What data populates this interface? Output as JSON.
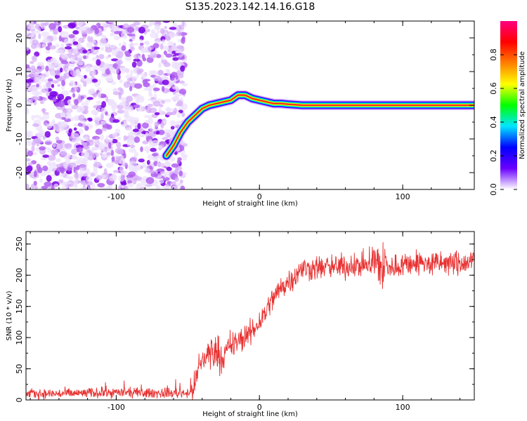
{
  "title": "S135.2023.142.14.16.G18",
  "chart_data": [
    {
      "type": "heatmap",
      "xlabel": "Height of straight line (km)",
      "ylabel": "Frequency (Hz)",
      "xlim": [
        -163,
        150
      ],
      "ylim": [
        -25,
        25
      ],
      "x_ticks": [
        -100,
        0,
        100
      ],
      "y_ticks": [
        -20,
        -10,
        0,
        10,
        20
      ],
      "noise_region_x": [
        -163,
        -52
      ],
      "signal_ridge": {
        "x": [
          -65,
          -60,
          -55,
          -50,
          -45,
          -40,
          -35,
          -30,
          -25,
          -20,
          -15,
          -10,
          -5,
          0,
          5,
          10,
          15,
          20,
          30,
          60,
          100,
          150
        ],
        "y": [
          -15,
          -12,
          -8,
          -5,
          -3,
          -1,
          0,
          0.5,
          1,
          1.5,
          3,
          3,
          2,
          1.5,
          1,
          0.5,
          0.5,
          0.3,
          0,
          0,
          0,
          0
        ]
      },
      "colorbar": {
        "label": "Normalized spectral amplitude",
        "range": [
          0,
          1
        ],
        "ticks": [
          0.0,
          0.2,
          0.4,
          0.6,
          0.8
        ],
        "tick_labels": [
          "0.0",
          "0.2",
          "0.4",
          "0.6",
          "0.8"
        ],
        "colors": [
          "#ffffff",
          "#6a00ff",
          "#0000ff",
          "#00e5ff",
          "#00ff00",
          "#ffff00",
          "#ff8000",
          "#ff0000",
          "#ff0080"
        ]
      }
    },
    {
      "type": "line",
      "xlabel": "Height of straight line (km)",
      "ylabel": "SNR (10 * v/v)",
      "xlim": [
        -163,
        150
      ],
      "ylim": [
        0,
        270
      ],
      "x_ticks": [
        -100,
        0,
        100
      ],
      "y_ticks": [
        0,
        50,
        100,
        150,
        200,
        250
      ],
      "color": "#e83030",
      "series": [
        {
          "x": [
            -163,
            -140,
            -120,
            -100,
            -80,
            -60,
            -48,
            -45,
            -42,
            -38,
            -35,
            -30,
            -25,
            -20,
            -15,
            -10,
            -5,
            0,
            5,
            10,
            15,
            20,
            25,
            30,
            40,
            50,
            60,
            70,
            75,
            80,
            85,
            90,
            100,
            110,
            120,
            130,
            140,
            150
          ],
          "y": [
            10,
            10,
            11,
            12,
            11,
            11,
            12,
            25,
            55,
            70,
            75,
            78,
            70,
            85,
            95,
            100,
            110,
            125,
            145,
            165,
            180,
            190,
            200,
            210,
            212,
            213,
            214,
            216,
            218,
            220,
            215,
            210,
            218,
            220,
            218,
            220,
            218,
            222
          ]
        }
      ]
    }
  ]
}
